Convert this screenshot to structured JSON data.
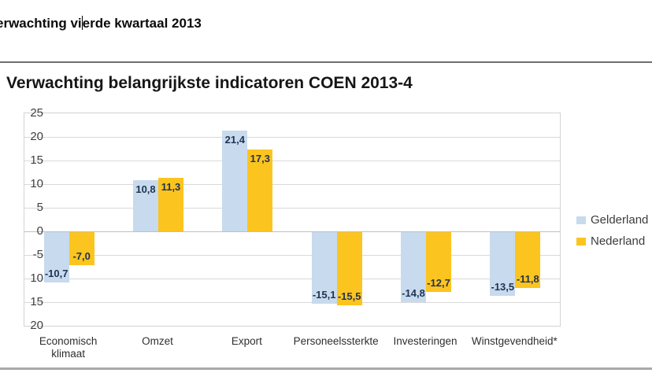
{
  "document": {
    "heading_before_cursor": "erwachting vi",
    "heading_after_cursor": "erde kwartaal 2013"
  },
  "chart": {
    "title": "Verwachting belangrijkste indicatoren COEN 2013-4",
    "y_axis": {
      "ticks": [
        {
          "label": "25",
          "value": 25
        },
        {
          "label": "20",
          "value": 20
        },
        {
          "label": "15",
          "value": 15
        },
        {
          "label": "10",
          "value": 10
        },
        {
          "label": "5",
          "value": 5
        },
        {
          "label": "0",
          "value": 0
        },
        {
          "label": "-5",
          "value": -5
        },
        {
          "label": "10",
          "value": -10
        },
        {
          "label": "15",
          "value": -15
        },
        {
          "label": "20",
          "value": -20
        }
      ]
    },
    "legend": [
      {
        "label": "Gelderland",
        "color": "#c7daee"
      },
      {
        "label": "Nederland",
        "color": "#fcc41f"
      }
    ]
  },
  "chart_data": {
    "type": "bar",
    "title": "Verwachting belangrijkste indicatoren COEN 2013-4",
    "categories": [
      "Economisch klimaat",
      "Omzet",
      "Export",
      "Personeelssterkte",
      "Investeringen",
      "Winstgevendheid*"
    ],
    "series": [
      {
        "name": "Gelderland",
        "color": "#c7daee",
        "values": [
          -10.7,
          10.8,
          21.4,
          -15.1,
          -14.8,
          -13.5
        ],
        "value_labels": [
          "-10,7",
          "10,8",
          "21,4",
          "-15,1",
          "-14,8",
          "-13,5"
        ]
      },
      {
        "name": "Nederland",
        "color": "#fcc41f",
        "values": [
          -7.0,
          11.3,
          17.3,
          -15.5,
          -12.7,
          -11.8
        ],
        "value_labels": [
          "-7,0",
          "11,3",
          "17,3",
          "-15,5",
          "-12,7",
          "-11,8"
        ]
      }
    ],
    "xlabel": "",
    "ylabel": "",
    "ylim": [
      -20,
      25
    ],
    "ytick_step": 5,
    "grid": true,
    "legend_position": "right"
  }
}
